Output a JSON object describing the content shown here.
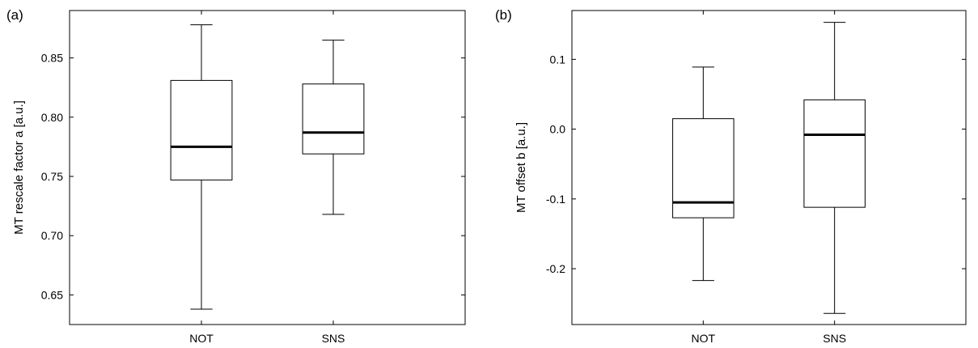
{
  "chart_data": [
    {
      "panel_label": "(a)",
      "type": "box",
      "ylabel": "MT rescale factor a [a.u.]",
      "xlabel": "",
      "categories": [
        "NOT",
        "SNS"
      ],
      "ylim": [
        0.625,
        0.89
      ],
      "yticks": [
        0.65,
        0.7,
        0.75,
        0.8,
        0.85
      ],
      "ytick_labels": [
        "0.65",
        "0.70",
        "0.75",
        "0.80",
        "0.85"
      ],
      "boxes": [
        {
          "category": "NOT",
          "whisker_low": 0.638,
          "q1": 0.747,
          "median": 0.775,
          "q3": 0.831,
          "whisker_high": 0.878
        },
        {
          "category": "SNS",
          "whisker_low": 0.718,
          "q1": 0.769,
          "median": 0.787,
          "q3": 0.828,
          "whisker_high": 0.865
        }
      ],
      "grid": false
    },
    {
      "panel_label": "(b)",
      "type": "box",
      "ylabel": "MT offset b [a.u.]",
      "xlabel": "",
      "categories": [
        "NOT",
        "SNS"
      ],
      "ylim": [
        -0.28,
        0.17
      ],
      "yticks": [
        -0.2,
        -0.1,
        0.0,
        0.1
      ],
      "ytick_labels": [
        "-0.2",
        "-0.1",
        "0.0",
        "0.1"
      ],
      "boxes": [
        {
          "category": "NOT",
          "whisker_low": -0.217,
          "q1": -0.127,
          "median": -0.105,
          "q3": 0.015,
          "whisker_high": 0.089
        },
        {
          "category": "SNS",
          "whisker_low": -0.264,
          "q1": -0.112,
          "median": -0.008,
          "q3": 0.042,
          "whisker_high": 0.153
        }
      ],
      "grid": false
    }
  ]
}
